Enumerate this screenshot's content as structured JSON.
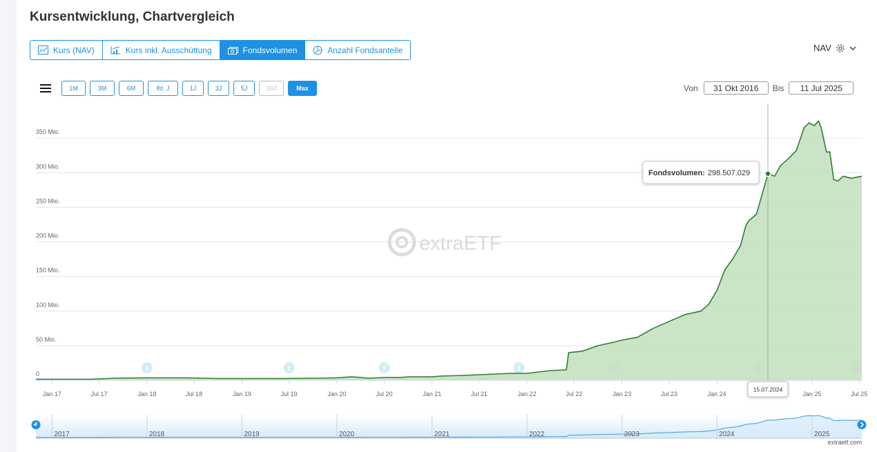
{
  "header": {
    "title": "Kursentwicklung, Chartvergleich"
  },
  "tabs": [
    {
      "label": "Kurs (NAV)",
      "icon": "line-chart-icon",
      "active": false
    },
    {
      "label": "Kurs inkl. Ausschüttung",
      "icon": "chart-with-bars-icon",
      "active": false
    },
    {
      "label": "Fondsvolumen",
      "icon": "money-icon",
      "active": true
    },
    {
      "label": "Anzahl Fondsanteile",
      "icon": "pie-chart-icon",
      "active": false
    }
  ],
  "nav_select": {
    "label": "NAV",
    "icon": "gear-icon"
  },
  "ranges": [
    {
      "label": "1M"
    },
    {
      "label": "3M"
    },
    {
      "label": "6M"
    },
    {
      "label": "lfd. J"
    },
    {
      "label": "1J"
    },
    {
      "label": "3J"
    },
    {
      "label": "5J"
    },
    {
      "label": "10J",
      "disabled": true
    },
    {
      "label": "Max",
      "active": true
    }
  ],
  "daterange": {
    "from_label": "Von",
    "from": "31 Okt 2016",
    "to_label": "Bis",
    "to": "11 Jul 2025"
  },
  "watermark": "extraETF",
  "credit": "extraetf.com",
  "colors": {
    "accent": "#1e90e6",
    "line": "#2e7d32",
    "fill": "#c8e2c3",
    "marker": "#7fc8dc"
  },
  "chart_data": {
    "type": "area",
    "series": [
      {
        "name": "Fondsvolumen"
      }
    ],
    "x_ticks": [
      "Jan 17",
      "Jul 17",
      "Jan 18",
      "Jul 18",
      "Jan 19",
      "Jul 19",
      "Jan 20",
      "Jul 20",
      "Jan 21",
      "Jul 21",
      "Jan 22",
      "Jul 22",
      "Jan 23",
      "Jul 23",
      "Jan 24",
      "Jul 24",
      "Jan 25",
      "Jul 25"
    ],
    "y_ticks": [
      "0",
      "50 Mio.",
      "100 Mio.",
      "150 Mio.",
      "200 Mio.",
      "250 Mio.",
      "300 Mio.",
      "350 Mio."
    ],
    "ylim": [
      0,
      400000000
    ],
    "xlim": [
      "2016-10-31",
      "2025-07-11"
    ],
    "points": [
      [
        "2016-10-31",
        1.5
      ],
      [
        "2017-06-01",
        1.5
      ],
      [
        "2017-09-01",
        3
      ],
      [
        "2018-01-01",
        3.5
      ],
      [
        "2018-06-01",
        3.5
      ],
      [
        "2018-10-01",
        2.5
      ],
      [
        "2019-03-01",
        2.5
      ],
      [
        "2019-06-01",
        2.5
      ],
      [
        "2019-11-01",
        3
      ],
      [
        "2020-01-01",
        3.5
      ],
      [
        "2020-03-01",
        5
      ],
      [
        "2020-05-01",
        3
      ],
      [
        "2020-07-01",
        4
      ],
      [
        "2020-09-01",
        4
      ],
      [
        "2020-10-01",
        5
      ],
      [
        "2021-01-01",
        5
      ],
      [
        "2021-02-01",
        6
      ],
      [
        "2021-05-01",
        7
      ],
      [
        "2021-07-01",
        8
      ],
      [
        "2021-09-01",
        9
      ],
      [
        "2021-11-01",
        10
      ],
      [
        "2022-01-01",
        10
      ],
      [
        "2022-04-01",
        14
      ],
      [
        "2022-06-01",
        15
      ],
      [
        "2022-06-10",
        40
      ],
      [
        "2022-08-01",
        42
      ],
      [
        "2022-10-01",
        50
      ],
      [
        "2022-12-01",
        55
      ],
      [
        "2023-01-01",
        58
      ],
      [
        "2023-03-01",
        62
      ],
      [
        "2023-05-01",
        75
      ],
      [
        "2023-07-01",
        85
      ],
      [
        "2023-09-01",
        95
      ],
      [
        "2023-11-01",
        100
      ],
      [
        "2023-12-01",
        110
      ],
      [
        "2024-01-01",
        130
      ],
      [
        "2024-02-01",
        160
      ],
      [
        "2024-03-01",
        175
      ],
      [
        "2024-04-01",
        195
      ],
      [
        "2024-04-20",
        222
      ],
      [
        "2024-05-01",
        230
      ],
      [
        "2024-06-01",
        240
      ],
      [
        "2024-06-20",
        265
      ],
      [
        "2024-07-15",
        298.5
      ],
      [
        "2024-08-10",
        295
      ],
      [
        "2024-09-01",
        310
      ],
      [
        "2024-10-01",
        320
      ],
      [
        "2024-11-01",
        332
      ],
      [
        "2024-12-01",
        365
      ],
      [
        "2024-12-20",
        372
      ],
      [
        "2025-01-10",
        368
      ],
      [
        "2025-01-25",
        375
      ],
      [
        "2025-02-05",
        365
      ],
      [
        "2025-02-25",
        330
      ],
      [
        "2025-03-10",
        330
      ],
      [
        "2025-03-25",
        290
      ],
      [
        "2025-04-10",
        288
      ],
      [
        "2025-05-01",
        295
      ],
      [
        "2025-06-01",
        292
      ],
      [
        "2025-07-11",
        295
      ]
    ],
    "tooltip": {
      "date": "15.07.2024",
      "label": "Fondsvolumen:",
      "value": "298.507.029"
    },
    "event_markers": [
      {
        "date": "2018-01-01",
        "label": "3"
      },
      {
        "date": "2019-07-01",
        "label": "2"
      },
      {
        "date": "2020-07-01",
        "label": "3"
      },
      {
        "date": "2021-12-01",
        "label": "2"
      },
      {
        "date": "2022-12-01",
        "label": "3"
      },
      {
        "date": "2024-06-15",
        "label": "3"
      },
      {
        "date": "2025-06-20",
        "label": "3"
      }
    ],
    "navigator_ticks": [
      "2017",
      "2018",
      "2019",
      "2020",
      "2021",
      "2022",
      "2023",
      "2024",
      "2025"
    ],
    "grid": true
  }
}
